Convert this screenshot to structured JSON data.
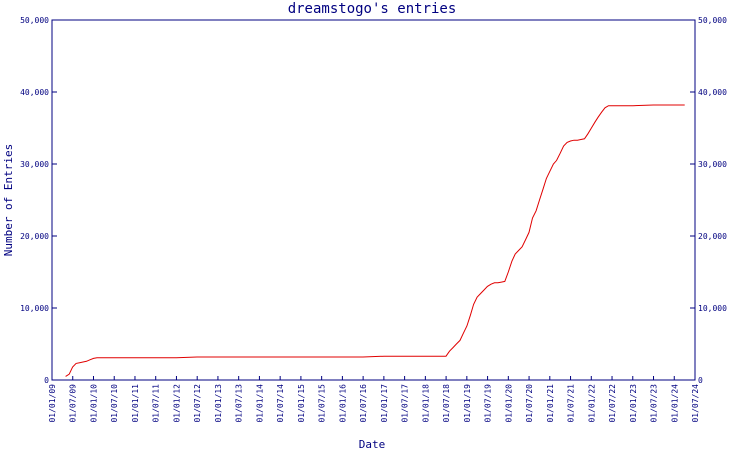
{
  "chart_data": {
    "type": "line",
    "title": "dreamstogo's entries",
    "xlabel": "Date",
    "ylabel": "Number of Entries",
    "grid": false,
    "legend": "none",
    "colors": {
      "axis": "#000080",
      "series": "#e00000"
    },
    "x_ticks": [
      "01/01/09",
      "01/07/09",
      "01/01/10",
      "01/07/10",
      "01/01/11",
      "01/07/11",
      "01/01/12",
      "01/07/12",
      "01/01/13",
      "01/07/13",
      "01/01/14",
      "01/07/14",
      "01/01/15",
      "01/07/15",
      "01/01/16",
      "01/07/16",
      "01/01/17",
      "01/07/17",
      "01/01/18",
      "01/07/18",
      "01/01/19",
      "01/07/19",
      "01/01/20",
      "01/07/20",
      "01/01/21",
      "01/07/21",
      "01/01/22",
      "01/07/22",
      "01/01/23",
      "01/07/23",
      "01/01/24",
      "01/07/24"
    ],
    "y_ticks_left": [
      "0",
      "10,000",
      "20,000",
      "30,000",
      "40,000",
      "50,000"
    ],
    "y_ticks_right": [
      "0",
      "10,000",
      "20,000",
      "30,000",
      "40,000",
      "50,000"
    ],
    "ylim": [
      0,
      50000
    ],
    "xlim": [
      "2009-01-01",
      "2024-07-01"
    ],
    "series": [
      {
        "x": [
          "2009-05-01",
          "2009-06-01",
          "2009-07-01",
          "2009-08-01",
          "2009-09-01",
          "2009-10-01",
          "2009-11-01",
          "2009-12-01",
          "2010-01-01",
          "2010-02-01",
          "2010-04-01",
          "2011-01-01",
          "2012-01-01",
          "2012-07-01",
          "2013-01-01",
          "2014-01-01",
          "2015-01-01",
          "2016-01-01",
          "2016-07-01",
          "2017-01-01",
          "2018-01-01",
          "2018-06-01",
          "2018-07-01",
          "2018-08-01",
          "2018-09-01",
          "2018-10-01",
          "2018-11-01",
          "2018-12-01",
          "2019-01-01",
          "2019-02-01",
          "2019-03-01",
          "2019-04-01",
          "2019-05-01",
          "2019-06-01",
          "2019-07-01",
          "2019-08-01",
          "2019-09-01",
          "2019-10-01",
          "2019-11-01",
          "2019-12-01",
          "2020-01-01",
          "2020-02-01",
          "2020-03-01",
          "2020-04-01",
          "2020-05-01",
          "2020-06-01",
          "2020-07-01",
          "2020-08-01",
          "2020-09-01",
          "2020-10-01",
          "2020-11-01",
          "2020-12-01",
          "2021-01-01",
          "2021-02-01",
          "2021-03-01",
          "2021-04-01",
          "2021-05-01",
          "2021-06-01",
          "2021-07-01",
          "2021-08-01",
          "2021-09-01",
          "2021-10-01",
          "2021-11-01",
          "2021-12-01",
          "2022-01-01",
          "2022-02-01",
          "2022-03-01",
          "2022-04-01",
          "2022-05-01",
          "2022-06-01",
          "2022-07-01",
          "2023-01-01",
          "2023-07-01",
          "2024-01-01",
          "2024-04-01"
        ],
        "values": [
          500,
          800,
          1800,
          2300,
          2400,
          2500,
          2600,
          2800,
          3000,
          3100,
          3100,
          3100,
          3100,
          3200,
          3200,
          3200,
          3200,
          3200,
          3200,
          3300,
          3300,
          3300,
          3300,
          4000,
          4500,
          5000,
          5500,
          6500,
          7500,
          9000,
          10500,
          11500,
          12000,
          12500,
          13000,
          13300,
          13500,
          13500,
          13600,
          13700,
          15000,
          16500,
          17500,
          18000,
          18500,
          19500,
          20500,
          22500,
          23500,
          25000,
          26500,
          28000,
          29000,
          30000,
          30500,
          31500,
          32500,
          33000,
          33200,
          33300,
          33300,
          33400,
          33500,
          34200,
          35000,
          35800,
          36500,
          37200,
          37800,
          38100,
          38100,
          38100,
          38200,
          38200,
          38200
        ]
      }
    ]
  }
}
